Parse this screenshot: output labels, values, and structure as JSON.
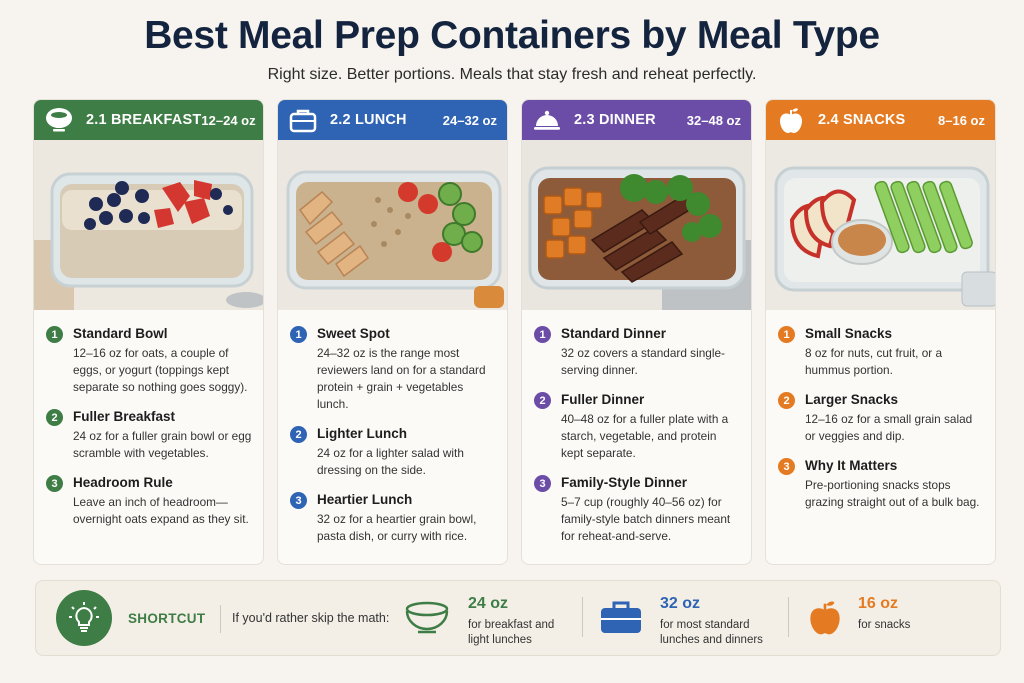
{
  "header": {
    "title": "Best Meal Prep Containers by Meal Type",
    "subtitle": "Right size. Better portions. Meals that stay fresh and reheat perfectly."
  },
  "cards": [
    {
      "name": "2.1 BREAKFAST",
      "size": "12–24 oz",
      "color": "#3e7d45",
      "icon": "bowl-icon",
      "items": [
        {
          "num": "1",
          "title": "Standard Bowl",
          "body": "12–16 oz for oats, a couple of eggs, or yogurt (toppings kept separate so nothing goes soggy)."
        },
        {
          "num": "2",
          "title": "Fuller Breakfast",
          "body": "24 oz for a fuller grain bowl or egg scramble with vegetables."
        },
        {
          "num": "3",
          "title": "Headroom Rule",
          "body": "Leave an inch of headroom—overnight oats expand as they sit."
        }
      ]
    },
    {
      "name": "2.2 LUNCH",
      "size": "24–32 oz",
      "color": "#2f63b4",
      "icon": "lunchbox-icon",
      "items": [
        {
          "num": "1",
          "title": "Sweet Spot",
          "body": "24–32 oz is the range most reviewers land on for a standard protein + grain + vegetables lunch."
        },
        {
          "num": "2",
          "title": "Lighter Lunch",
          "body": "24 oz for a lighter salad with dressing on the side."
        },
        {
          "num": "3",
          "title": "Heartier Lunch",
          "body": "32 oz for a heartier grain bowl, pasta dish, or curry with rice."
        }
      ]
    },
    {
      "name": "2.3 DINNER",
      "size": "32–48 oz",
      "color": "#6b4da8",
      "icon": "cloche-icon",
      "items": [
        {
          "num": "1",
          "title": "Standard Dinner",
          "body": "32 oz covers a standard single-serving dinner."
        },
        {
          "num": "2",
          "title": "Fuller Dinner",
          "body": "40–48 oz for a fuller plate with a starch, vegetable, and protein kept separate."
        },
        {
          "num": "3",
          "title": "Family-Style Dinner",
          "body": "5–7 cup (roughly 40–56 oz) for family-style batch dinners meant for reheat-and-serve."
        }
      ]
    },
    {
      "name": "2.4 SNACKS",
      "size": "8–16 oz",
      "color": "#e47b22",
      "icon": "apple-icon",
      "items": [
        {
          "num": "1",
          "title": "Small Snacks",
          "body": "8 oz for nuts, cut fruit, or a hummus portion."
        },
        {
          "num": "2",
          "title": "Larger Snacks",
          "body": "12–16 oz for a small grain salad or veggies and dip."
        },
        {
          "num": "3",
          "title": "Why It Matters",
          "body": "Pre-portioning snacks stops grazing straight out of a bulk bag."
        }
      ]
    }
  ],
  "shortcut": {
    "label": "SHORTCUT",
    "intro": "If you'd rather skip the math:",
    "options": [
      {
        "value": "24 oz",
        "desc_line1": "for breakfast and",
        "desc_line2": "light lunches",
        "color": "#3e7d45",
        "icon": "bowl-icon"
      },
      {
        "value": "32 oz",
        "desc_line1": "for most standard",
        "desc_line2": "lunches and dinners",
        "color": "#2f63b4",
        "icon": "lunchbox-icon"
      },
      {
        "value": "16 oz",
        "desc_line1": "for snacks",
        "desc_line2": "",
        "color": "#e47b22",
        "icon": "apple-icon"
      }
    ]
  }
}
